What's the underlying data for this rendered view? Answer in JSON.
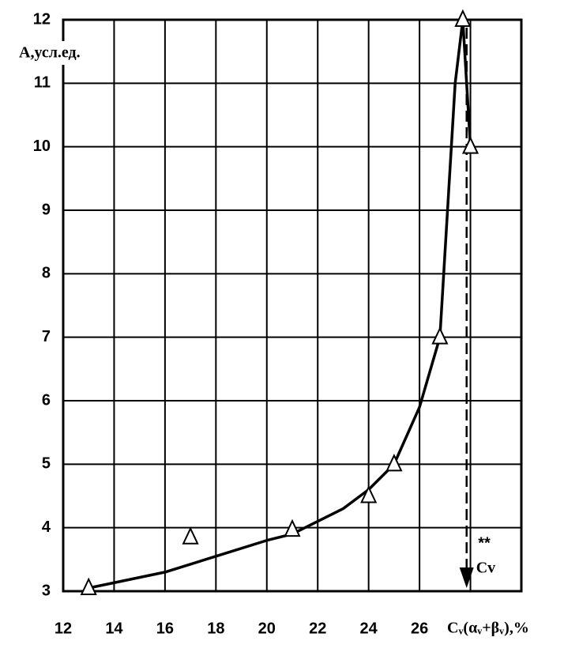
{
  "chart_data": {
    "type": "line",
    "y_label": "А,усл.ед.",
    "x_label": "Cᵥ(αᵥ+βᵥ),%",
    "xlim": [
      12,
      30
    ],
    "ylim": [
      3,
      12
    ],
    "xticks": [
      12,
      14,
      16,
      18,
      20,
      22,
      24,
      26
    ],
    "xgrid": [
      14,
      16,
      18,
      20,
      22,
      24,
      26,
      28
    ],
    "yticks": [
      3,
      4,
      5,
      6,
      7,
      8,
      9,
      10,
      11,
      12
    ],
    "grid": true,
    "color": "#000000",
    "curve": {
      "x": [
        13,
        16,
        18,
        20,
        21,
        23,
        24,
        25,
        26,
        26.8,
        27.1,
        27.4,
        27.7,
        28
      ],
      "y": [
        3.05,
        3.3,
        3.55,
        3.8,
        3.9,
        4.3,
        4.6,
        5.0,
        5.9,
        7.0,
        9.0,
        11.0,
        12.0,
        10.0
      ]
    },
    "points": {
      "x": [
        13,
        17,
        21,
        24,
        25,
        26.8,
        27.7,
        28
      ],
      "y": [
        3.05,
        3.85,
        3.97,
        4.5,
        5.0,
        7.0,
        12.0,
        10.0
      ]
    },
    "annotations": [
      {
        "text": "Cv",
        "x": 27.85
      },
      {
        "text": "**",
        "x": 28.3
      }
    ]
  }
}
